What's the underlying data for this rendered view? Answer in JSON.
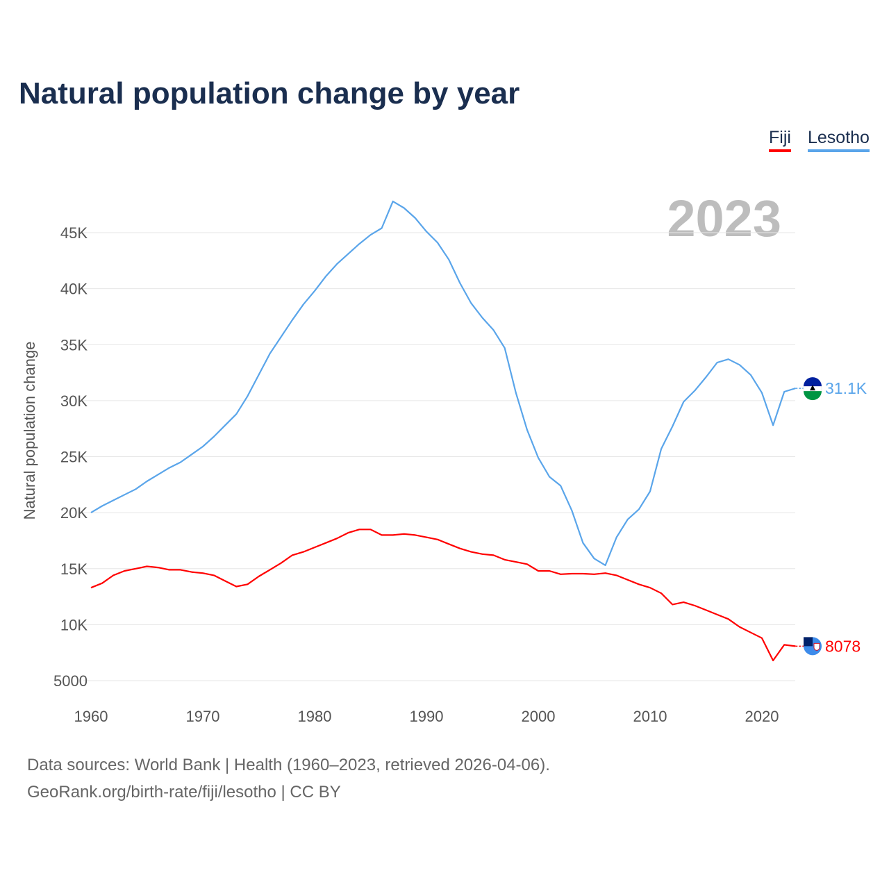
{
  "chart_data": {
    "type": "line",
    "title": "Natural population change by year",
    "ylabel": "Natural population change",
    "xlabel": "",
    "year_label": "2023",
    "xlim": [
      1960,
      2023
    ],
    "ylim": [
      5000,
      48000
    ],
    "grid": true,
    "legend_position": "top-right",
    "x_ticks": [
      "1960",
      "1970",
      "1980",
      "1990",
      "2000",
      "2010",
      "2020"
    ],
    "y_ticks": [
      {
        "v": 5000,
        "label": "5000"
      },
      {
        "v": 10000,
        "label": "10K"
      },
      {
        "v": 15000,
        "label": "15K"
      },
      {
        "v": 20000,
        "label": "20K"
      },
      {
        "v": 25000,
        "label": "25K"
      },
      {
        "v": 30000,
        "label": "30K"
      },
      {
        "v": 35000,
        "label": "35K"
      },
      {
        "v": 40000,
        "label": "40K"
      },
      {
        "v": 45000,
        "label": "45K"
      }
    ],
    "x_start": 1960,
    "series": [
      {
        "name": "Fiji",
        "color": "#ff0000",
        "end_label": "8078",
        "values": [
          13300,
          13700,
          14400,
          14800,
          15000,
          15200,
          15100,
          14900,
          14900,
          14700,
          14600,
          14400,
          13900,
          13400,
          13600,
          14300,
          14900,
          15500,
          16200,
          16500,
          16900,
          17300,
          17700,
          18200,
          18500,
          18500,
          18000,
          18000,
          18100,
          18000,
          17800,
          17600,
          17200,
          16800,
          16500,
          16300,
          16200,
          15800,
          15600,
          15400,
          14800,
          14800,
          14500,
          14550,
          14550,
          14500,
          14600,
          14400,
          14000,
          13600,
          13300,
          12800,
          11800,
          12000,
          11700,
          11300,
          10900,
          10500,
          9800,
          9300,
          8800,
          6800,
          8200,
          8078
        ]
      },
      {
        "name": "Lesotho",
        "color": "#5aa5ea",
        "end_label": "31.1K",
        "values": [
          20000,
          20600,
          21100,
          21600,
          22100,
          22800,
          23400,
          24000,
          24500,
          25200,
          25900,
          26800,
          27800,
          28800,
          30400,
          32300,
          34200,
          35700,
          37200,
          38600,
          39800,
          41100,
          42200,
          43100,
          44000,
          44800,
          45400,
          47800,
          47200,
          46300,
          45100,
          44100,
          42600,
          40500,
          38700,
          37400,
          36300,
          34700,
          30700,
          27400,
          24900,
          23200,
          22400,
          20200,
          17300,
          15900,
          15300,
          17800,
          19400,
          20300,
          21900,
          25700,
          27700,
          29900,
          30900,
          32100,
          33400,
          33700,
          33200,
          32300,
          30700,
          27800,
          30800,
          31100
        ]
      }
    ]
  },
  "footer": {
    "line1": "Data sources: World Bank | Health (1960–2023, retrieved 2026-04-06).",
    "line2": "GeoRank.org/birth-rate/fiji/lesotho | CC BY"
  }
}
